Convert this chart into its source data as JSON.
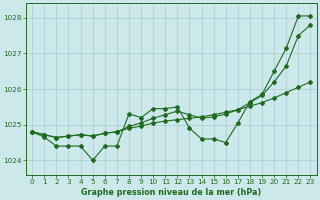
{
  "xlabel": "Graphe pression niveau de la mer (hPa)",
  "x": [
    0,
    1,
    2,
    3,
    4,
    5,
    6,
    7,
    8,
    9,
    10,
    11,
    12,
    13,
    14,
    15,
    16,
    17,
    18,
    19,
    20,
    21,
    22,
    23
  ],
  "y_jagged": [
    1024.8,
    1024.65,
    1024.4,
    1024.4,
    1024.4,
    1024.0,
    1024.4,
    1024.4,
    1025.3,
    1025.2,
    1025.45,
    1025.45,
    1025.5,
    1024.9,
    1024.6,
    1024.6,
    1024.5,
    1025.05,
    1025.65,
    1025.85,
    1026.5,
    1027.15,
    1028.05,
    1028.05
  ],
  "y_smooth1": [
    1024.8,
    1024.72,
    1024.64,
    1024.68,
    1024.72,
    1024.68,
    1024.76,
    1024.8,
    1024.9,
    1024.96,
    1025.05,
    1025.1,
    1025.14,
    1025.18,
    1025.22,
    1025.28,
    1025.35,
    1025.42,
    1025.52,
    1025.62,
    1025.75,
    1025.9,
    1026.05,
    1026.2
  ],
  "y_smooth2": [
    1024.8,
    1024.72,
    1024.64,
    1024.68,
    1024.72,
    1024.68,
    1024.76,
    1024.8,
    1024.95,
    1025.05,
    1025.18,
    1025.28,
    1025.38,
    1025.28,
    1025.18,
    1025.22,
    1025.3,
    1025.42,
    1025.62,
    1025.82,
    1026.2,
    1026.65,
    1027.5,
    1027.8
  ],
  "bg_color": "#cde8eb",
  "grid_color": "#aacdd1",
  "line_color": "#1e6b1e",
  "ylim": [
    1023.6,
    1028.4
  ],
  "yticks": [
    1024,
    1025,
    1026,
    1027,
    1028
  ],
  "xticks": [
    0,
    1,
    2,
    3,
    4,
    5,
    6,
    7,
    8,
    9,
    10,
    11,
    12,
    13,
    14,
    15,
    16,
    17,
    18,
    19,
    20,
    21,
    22,
    23
  ],
  "xlabel_fontsize": 5.8,
  "tick_fontsize": 5.2,
  "xlabel_fontweight": "bold"
}
